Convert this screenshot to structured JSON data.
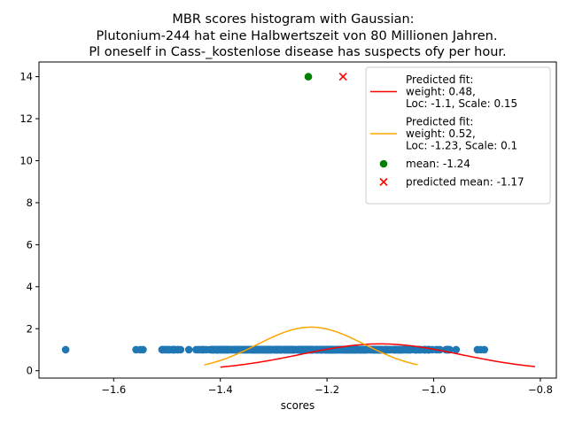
{
  "chart_data": {
    "type": "scatter",
    "title_lines": [
      "MBR scores histogram with Gaussian:",
      "Plutonium-244 hat eine Halbwertszeit von 80 Millionen Jahren.",
      "Pl oneself in Cass-_kostenlose disease has suspects ofy per hour."
    ],
    "xlabel": "scores",
    "ylabel": "",
    "xlim": [
      -1.74,
      -0.77
    ],
    "ylim": [
      -0.35,
      14.7
    ],
    "x_ticks": [
      -1.6,
      -1.4,
      -1.2,
      -1.0,
      -0.8
    ],
    "x_tick_labels": [
      "−1.6",
      "−1.4",
      "−1.2",
      "−1.0",
      "−0.8"
    ],
    "y_ticks": [
      0,
      2,
      4,
      6,
      8,
      10,
      12,
      14
    ],
    "y_tick_labels": [
      "0",
      "2",
      "4",
      "6",
      "8",
      "10",
      "12",
      "14"
    ],
    "grid": false,
    "legend_position": "upper right",
    "colors": {
      "points": "#1f77b4",
      "fit1": "#ff0000",
      "fit2": "#ffa500",
      "mean": "#008000",
      "predicted_mean": "#ff0000"
    },
    "scatter_points": {
      "name": "scores",
      "y": 1,
      "x_outliers": [
        -1.69,
        -1.558,
        -1.55,
        -1.545,
        -0.958,
        -0.918,
        -0.912,
        -0.905
      ],
      "x_dense_range": [
        -1.51,
        -0.97
      ],
      "x_dense_center": -1.23
    },
    "series": [
      {
        "name": "Predicted fit: weight: 0.48, Loc: -1.1, Scale: 0.15",
        "kind": "gaussian",
        "weight": 0.48,
        "loc": -1.1,
        "scale": 0.15,
        "x_range": [
          -1.4,
          -0.81
        ]
      },
      {
        "name": "Predicted fit: weight: 0.52, Loc: -1.23, Scale: 0.1",
        "kind": "gaussian",
        "weight": 0.52,
        "loc": -1.23,
        "scale": 0.1,
        "x_range": [
          -1.43,
          -1.03
        ]
      }
    ],
    "markers": [
      {
        "name": "mean: -1.24",
        "x": -1.235,
        "y": 14,
        "marker": "circle"
      },
      {
        "name": "predicted mean: -1.17",
        "x": -1.17,
        "y": 14,
        "marker": "x"
      }
    ],
    "legend": [
      {
        "kind": "line",
        "color_key": "fit1",
        "lines": [
          "Predicted fit:",
          "weight: 0.48,",
          "Loc: -1.1, Scale: 0.15"
        ]
      },
      {
        "kind": "line",
        "color_key": "fit2",
        "lines": [
          "Predicted fit:",
          "weight: 0.52,",
          "Loc: -1.23, Scale: 0.1"
        ]
      },
      {
        "kind": "circle",
        "color_key": "mean",
        "lines": [
          "mean: -1.24"
        ]
      },
      {
        "kind": "x",
        "color_key": "predicted_mean",
        "lines": [
          "predicted mean: -1.17"
        ]
      }
    ]
  }
}
